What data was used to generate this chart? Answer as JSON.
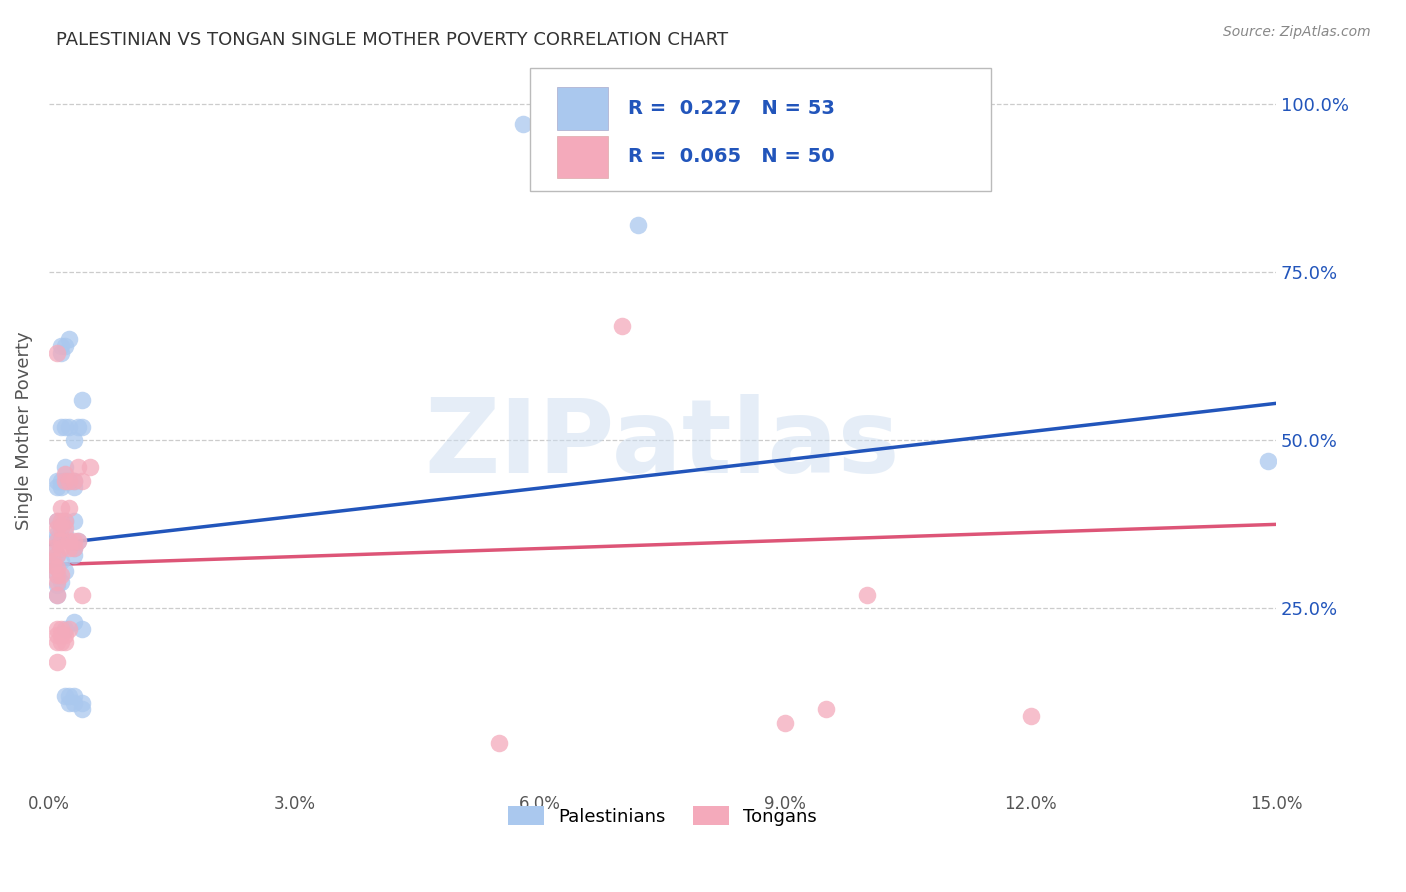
{
  "title": "PALESTINIAN VS TONGAN SINGLE MOTHER POVERTY CORRELATION CHART",
  "source": "Source: ZipAtlas.com",
  "ylabel_label": "Single Mother Poverty",
  "legend_labels": [
    "Palestinians",
    "Tongans"
  ],
  "r_blue": 0.227,
  "n_blue": 53,
  "r_pink": 0.065,
  "n_pink": 50,
  "blue_color": "#aac8ee",
  "pink_color": "#f4aabb",
  "blue_line_color": "#2255bb",
  "pink_line_color": "#dd5577",
  "watermark_text": "ZIPatlas",
  "xlim": [
    0.0,
    0.15
  ],
  "ylim": [
    -0.02,
    1.05
  ],
  "ytick_vals": [
    0.25,
    0.5,
    0.75,
    1.0
  ],
  "ytick_labels": [
    "25.0%",
    "50.0%",
    "75.0%",
    "100.0%"
  ],
  "xtick_vals": [
    0.0,
    0.03,
    0.06,
    0.09,
    0.12,
    0.15
  ],
  "xtick_labels": [
    "0.0%",
    "3.0%",
    "6.0%",
    "9.0%",
    "12.0%",
    "15.0%"
  ],
  "blue_points": [
    [
      0.0005,
      0.34
    ],
    [
      0.0005,
      0.315
    ],
    [
      0.001,
      0.44
    ],
    [
      0.001,
      0.43
    ],
    [
      0.001,
      0.38
    ],
    [
      0.001,
      0.36
    ],
    [
      0.001,
      0.355
    ],
    [
      0.001,
      0.33
    ],
    [
      0.001,
      0.3
    ],
    [
      0.001,
      0.285
    ],
    [
      0.001,
      0.27
    ],
    [
      0.0015,
      0.64
    ],
    [
      0.0015,
      0.63
    ],
    [
      0.0015,
      0.52
    ],
    [
      0.0015,
      0.44
    ],
    [
      0.0015,
      0.43
    ],
    [
      0.0015,
      0.38
    ],
    [
      0.0015,
      0.355
    ],
    [
      0.0015,
      0.32
    ],
    [
      0.0015,
      0.29
    ],
    [
      0.002,
      0.64
    ],
    [
      0.002,
      0.52
    ],
    [
      0.002,
      0.46
    ],
    [
      0.002,
      0.44
    ],
    [
      0.002,
      0.38
    ],
    [
      0.002,
      0.36
    ],
    [
      0.002,
      0.305
    ],
    [
      0.002,
      0.22
    ],
    [
      0.002,
      0.12
    ],
    [
      0.0025,
      0.65
    ],
    [
      0.0025,
      0.52
    ],
    [
      0.0025,
      0.44
    ],
    [
      0.0025,
      0.12
    ],
    [
      0.0025,
      0.11
    ],
    [
      0.003,
      0.5
    ],
    [
      0.003,
      0.44
    ],
    [
      0.003,
      0.43
    ],
    [
      0.003,
      0.38
    ],
    [
      0.003,
      0.34
    ],
    [
      0.003,
      0.33
    ],
    [
      0.003,
      0.23
    ],
    [
      0.003,
      0.12
    ],
    [
      0.003,
      0.11
    ],
    [
      0.0035,
      0.52
    ],
    [
      0.0035,
      0.35
    ],
    [
      0.004,
      0.56
    ],
    [
      0.004,
      0.52
    ],
    [
      0.004,
      0.22
    ],
    [
      0.004,
      0.11
    ],
    [
      0.004,
      0.1
    ],
    [
      0.058,
      0.97
    ],
    [
      0.072,
      0.82
    ],
    [
      0.149,
      0.47
    ]
  ],
  "pink_points": [
    [
      0.0005,
      0.34
    ],
    [
      0.0005,
      0.32
    ],
    [
      0.0005,
      0.315
    ],
    [
      0.001,
      0.63
    ],
    [
      0.001,
      0.38
    ],
    [
      0.001,
      0.37
    ],
    [
      0.001,
      0.35
    ],
    [
      0.001,
      0.33
    ],
    [
      0.001,
      0.31
    ],
    [
      0.001,
      0.3
    ],
    [
      0.001,
      0.29
    ],
    [
      0.001,
      0.27
    ],
    [
      0.001,
      0.22
    ],
    [
      0.001,
      0.21
    ],
    [
      0.001,
      0.2
    ],
    [
      0.001,
      0.17
    ],
    [
      0.0015,
      0.4
    ],
    [
      0.0015,
      0.38
    ],
    [
      0.0015,
      0.37
    ],
    [
      0.0015,
      0.35
    ],
    [
      0.0015,
      0.34
    ],
    [
      0.0015,
      0.3
    ],
    [
      0.0015,
      0.22
    ],
    [
      0.0015,
      0.21
    ],
    [
      0.0015,
      0.2
    ],
    [
      0.002,
      0.45
    ],
    [
      0.002,
      0.44
    ],
    [
      0.002,
      0.38
    ],
    [
      0.002,
      0.37
    ],
    [
      0.002,
      0.21
    ],
    [
      0.002,
      0.2
    ],
    [
      0.0025,
      0.44
    ],
    [
      0.0025,
      0.4
    ],
    [
      0.0025,
      0.35
    ],
    [
      0.0025,
      0.34
    ],
    [
      0.0025,
      0.22
    ],
    [
      0.003,
      0.44
    ],
    [
      0.003,
      0.35
    ],
    [
      0.003,
      0.34
    ],
    [
      0.0035,
      0.46
    ],
    [
      0.0035,
      0.35
    ],
    [
      0.004,
      0.44
    ],
    [
      0.004,
      0.27
    ],
    [
      0.005,
      0.46
    ],
    [
      0.07,
      0.67
    ],
    [
      0.09,
      0.08
    ],
    [
      0.1,
      0.27
    ],
    [
      0.12,
      0.09
    ],
    [
      0.055,
      0.05
    ],
    [
      0.095,
      0.1
    ]
  ]
}
